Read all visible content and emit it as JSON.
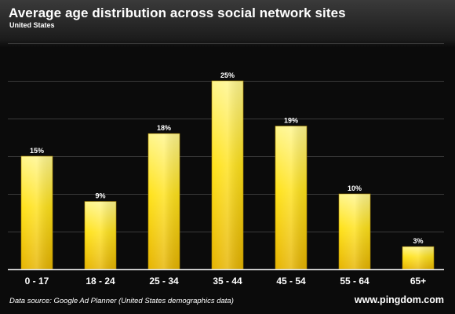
{
  "header": {
    "title": "Average age distribution across social network sites",
    "subtitle": "United States"
  },
  "footer": {
    "source": "Data source: Google Ad Planner (United States demographics data)",
    "brand": "www.pingdom.com"
  },
  "colors": {
    "bar_top": "#fff68c",
    "bar_bottom": "#e6b400",
    "bar_mid": "#ffe21a",
    "grid": "#3a3a3a",
    "text": "#ffffff"
  },
  "chart_data": {
    "type": "bar",
    "title": "Average age distribution across social network sites",
    "subtitle": "United States",
    "categories": [
      "0 - 17",
      "18 - 24",
      "25 - 34",
      "35 - 44",
      "45 - 54",
      "55 - 64",
      "65+"
    ],
    "values": [
      15,
      9,
      18,
      25,
      19,
      10,
      3
    ],
    "data_labels": [
      "15%",
      "9%",
      "18%",
      "25%",
      "19%",
      "10%",
      "3%"
    ],
    "ylim": [
      0,
      30
    ],
    "grid": true,
    "legend": "none"
  }
}
